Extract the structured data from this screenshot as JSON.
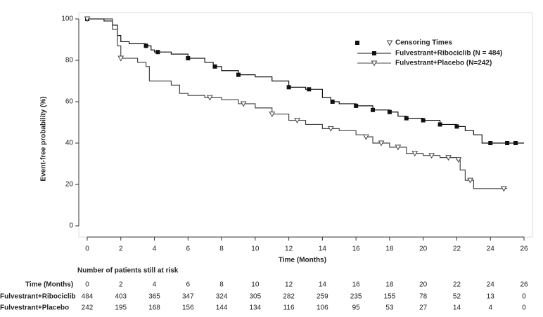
{
  "chart_data": {
    "type": "step",
    "x_label": "Time (Months)",
    "y_label": "Event-free probability (%)",
    "xlim": [
      0,
      26
    ],
    "ylim": [
      0,
      100
    ],
    "xticks": [
      0,
      2,
      4,
      6,
      8,
      10,
      12,
      14,
      16,
      18,
      20,
      22,
      24,
      26
    ],
    "yticks": [
      0,
      20,
      40,
      60,
      80,
      100
    ],
    "legend_title": "Censoring Times",
    "series": [
      {
        "name": "Fulvestrant+Ribociclib (N = 484)",
        "color": "#111111",
        "marker": "square",
        "x": [
          0,
          1,
          1.5,
          1.8,
          2,
          2.5,
          3.5,
          3.8,
          4,
          5,
          6,
          7,
          7.5,
          8,
          9,
          10,
          11,
          12,
          13,
          14,
          14.5,
          15,
          16,
          17,
          18,
          18.5,
          19,
          20,
          21,
          22,
          22.5,
          23,
          23.5,
          26
        ],
        "values": [
          100,
          99,
          97,
          92,
          89,
          88,
          87,
          85,
          84,
          83,
          81,
          79,
          77,
          75,
          73,
          72,
          70,
          67,
          66,
          62,
          60,
          59,
          58,
          56,
          55,
          53,
          52,
          51,
          49,
          48,
          46,
          44,
          40,
          40
        ],
        "censor_x": [
          0,
          3.5,
          4.2,
          6,
          7.6,
          9,
          12,
          13.2,
          14.6,
          16,
          17,
          18,
          19,
          20,
          21,
          22,
          24,
          25,
          25.5
        ],
        "censor_values": [
          100,
          87,
          84,
          81,
          77,
          73,
          67,
          66,
          60,
          58,
          56,
          55,
          52,
          51,
          49,
          48,
          40,
          40,
          40
        ]
      },
      {
        "name": "Fulvestrant+Placebo (N=242)",
        "color": "#444444",
        "marker": "triangle",
        "x": [
          0,
          1.5,
          1.8,
          2,
          3,
          3.5,
          3.7,
          5,
          5.5,
          6,
          7,
          8,
          9,
          10,
          11,
          12,
          13,
          14,
          15,
          16,
          16.5,
          17,
          18,
          19,
          20,
          21,
          22,
          22.2,
          22.5,
          23,
          25
        ],
        "values": [
          100,
          95,
          87,
          81,
          79,
          77,
          70,
          68,
          64,
          63,
          62,
          61,
          59,
          57,
          54,
          51,
          49,
          47,
          46,
          44,
          43,
          40,
          38,
          35,
          34,
          33,
          32,
          27,
          22,
          18,
          18
        ],
        "censor_x": [
          0,
          2,
          7.3,
          9.3,
          11,
          12.5,
          14.5,
          16.6,
          17.5,
          18.5,
          19.5,
          20.5,
          21.5,
          22.1,
          22.8,
          24.8
        ],
        "censor_values": [
          100,
          81,
          62,
          59,
          54,
          51,
          47,
          43,
          40,
          38,
          35,
          34,
          33,
          32,
          22,
          18
        ]
      }
    ],
    "risk_table": {
      "title": "Number of patients still at risk",
      "header_label": "Time (Months)",
      "times": [
        "0",
        "2",
        "4",
        "6",
        "8",
        "10",
        "12",
        "14",
        "16",
        "18",
        "20",
        "22",
        "24",
        "26"
      ],
      "rows": [
        {
          "name": "Fulvestrant+Ribociclib",
          "values": [
            484,
            403,
            365,
            347,
            324,
            305,
            282,
            259,
            235,
            155,
            78,
            52,
            13,
            0
          ]
        },
        {
          "name": "Fulvestrant+Placebo",
          "values": [
            242,
            195,
            168,
            156,
            144,
            134,
            116,
            106,
            95,
            53,
            27,
            14,
            4,
            0
          ]
        }
      ]
    }
  }
}
